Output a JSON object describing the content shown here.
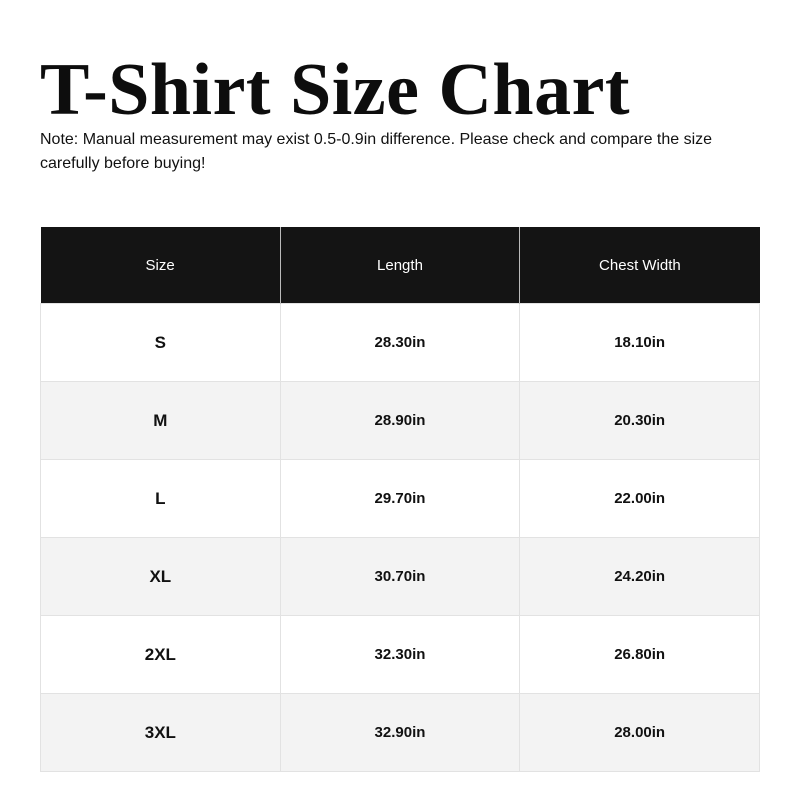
{
  "title": "T-Shirt Size Chart",
  "note": "Note: Manual measurement may exist 0.5-0.9in difference. Please check and compare the size carefully before buying!",
  "table": {
    "headers": [
      "Size",
      "Length",
      "Chest Width"
    ],
    "rows": [
      [
        "S",
        "28.30in",
        "18.10in"
      ],
      [
        "M",
        "28.90in",
        "20.30in"
      ],
      [
        "L",
        "29.70in",
        "22.00in"
      ],
      [
        "XL",
        "30.70in",
        "24.20in"
      ],
      [
        "2XL",
        "32.30in",
        "26.80in"
      ],
      [
        "3XL",
        "32.90in",
        "28.00in"
      ]
    ]
  },
  "colors": {
    "header_bg": "#141414",
    "alt_row_bg": "#f3f3f3"
  }
}
